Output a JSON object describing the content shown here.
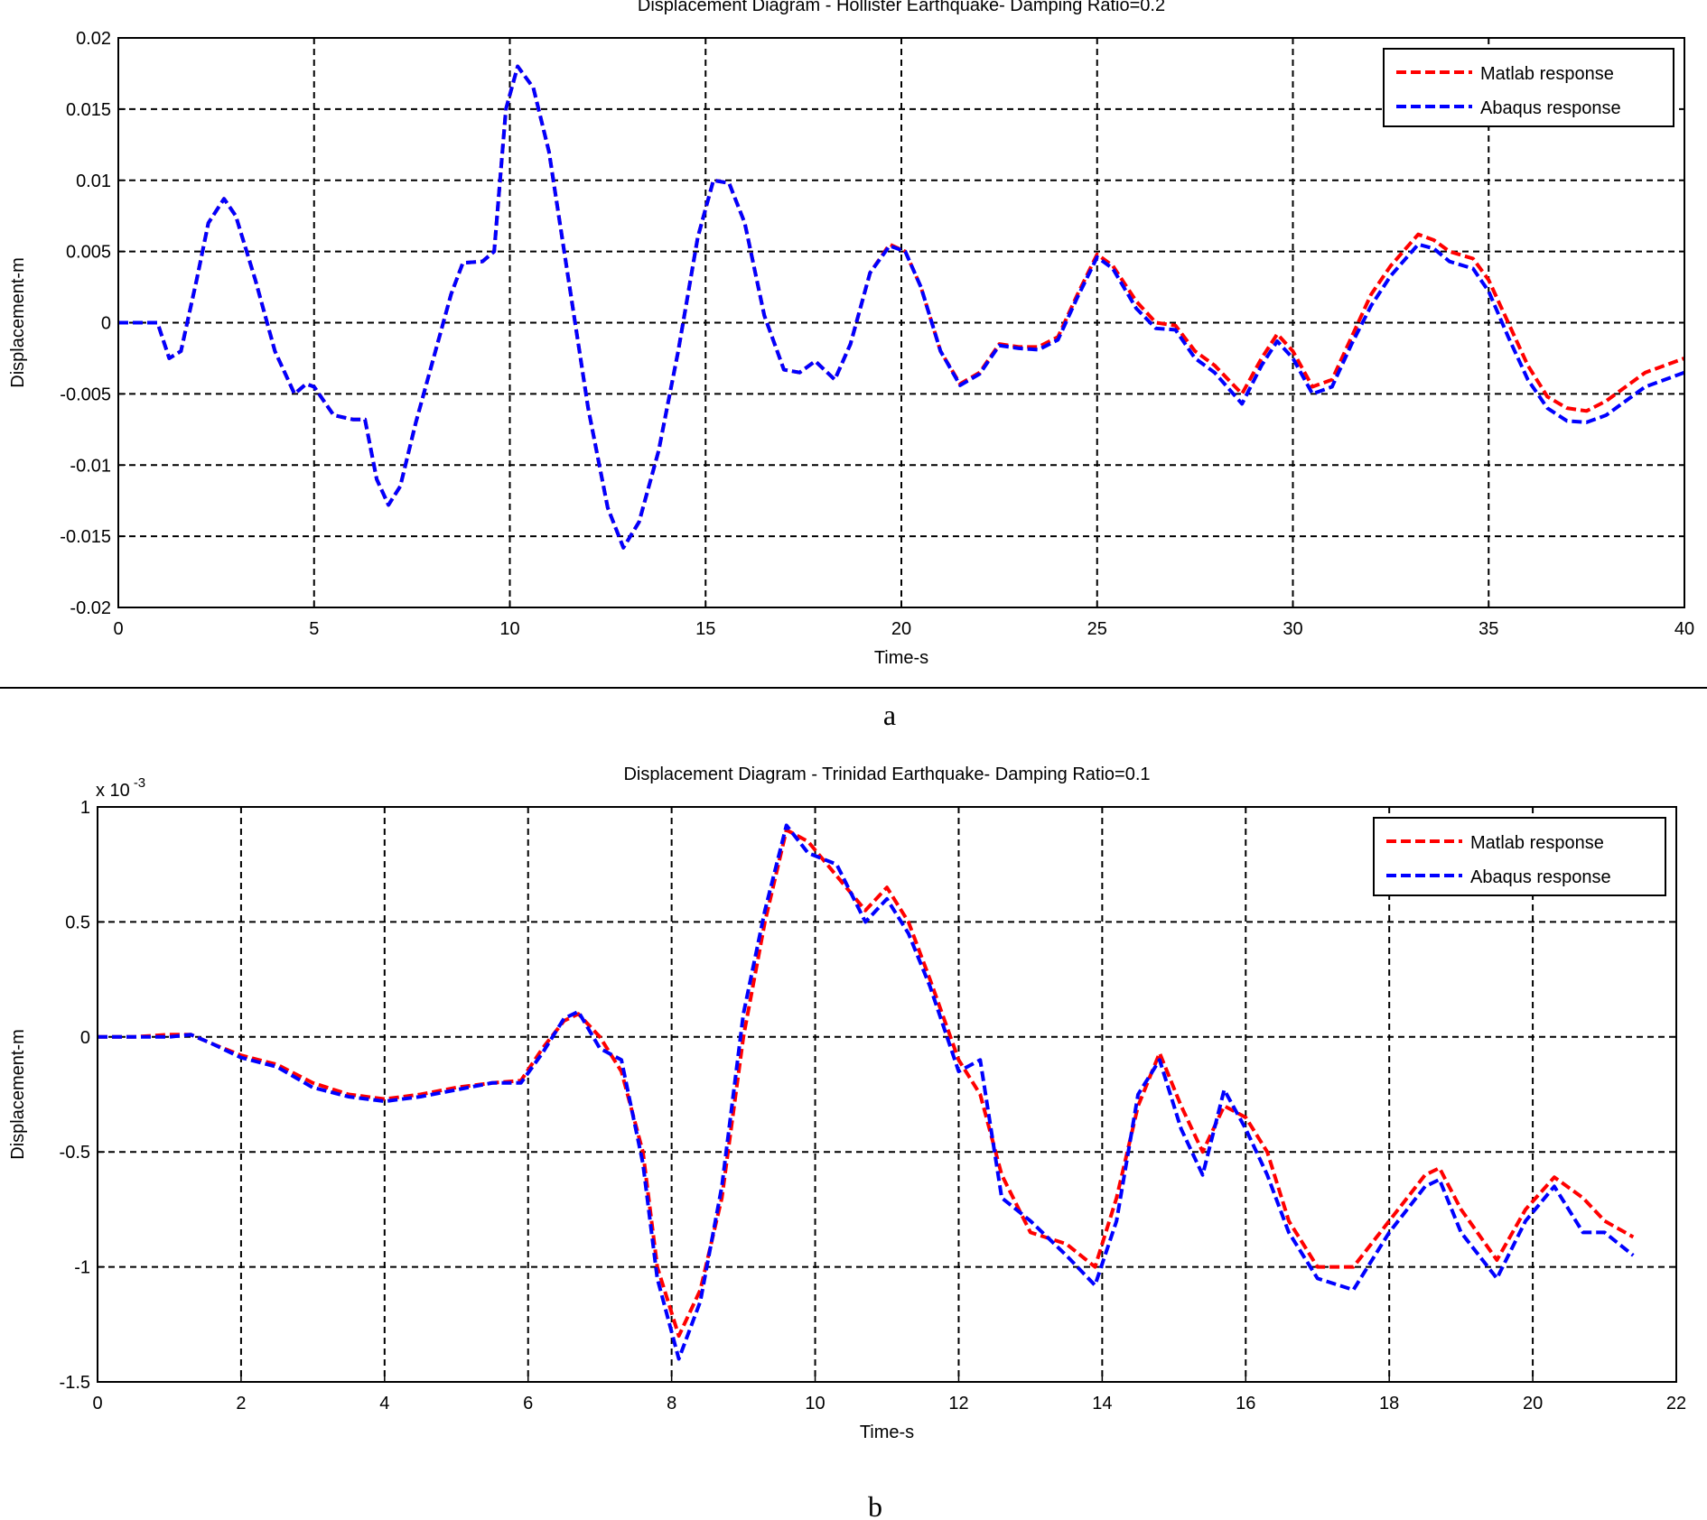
{
  "chart_data": [
    {
      "type": "line",
      "title": "Displacement Diagram - Hollister Earthquake- Damping Ratio=0.2",
      "xlabel": "Time-s",
      "ylabel": "Displacement-m",
      "caption": "a",
      "x": [
        0,
        0.5,
        1,
        1.3,
        1.6,
        2,
        2.3,
        2.7,
        3,
        3.5,
        4,
        4.5,
        4.8,
        5,
        5.5,
        6,
        6.3,
        6.6,
        6.9,
        7.2,
        7.6,
        8,
        8.5,
        8.8,
        9.3,
        9.6,
        9.9,
        10.2,
        10.6,
        11,
        11.5,
        12,
        12.5,
        12.9,
        13.3,
        13.8,
        14.3,
        14.8,
        15.2,
        15.6,
        16,
        16.5,
        17,
        17.4,
        17.8,
        18.3,
        18.7,
        19.2,
        19.7,
        20.1,
        20.5,
        21,
        21.5,
        22,
        22.5,
        23,
        23.5,
        24,
        24.5,
        25,
        25.4,
        26,
        26.5,
        27,
        27.5,
        28,
        28.7,
        29.2,
        29.6,
        30,
        30.5,
        31,
        31.5,
        32,
        32.5,
        33.2,
        33.6,
        34,
        34.6,
        35,
        35.5,
        36,
        36.5,
        37,
        37.5,
        38,
        38.5,
        39,
        39.5,
        40
      ],
      "series": [
        {
          "name": "Matlab response",
          "color": "#ff0000",
          "values": [
            0,
            0,
            0,
            -0.0025,
            -0.002,
            0.003,
            0.007,
            0.0087,
            0.0075,
            0.003,
            -0.002,
            -0.005,
            -0.0043,
            -0.0045,
            -0.0065,
            -0.0068,
            -0.0068,
            -0.011,
            -0.0128,
            -0.0115,
            -0.007,
            -0.003,
            0.002,
            0.0042,
            0.0043,
            0.005,
            0.015,
            0.018,
            0.0165,
            0.012,
            0.003,
            -0.006,
            -0.013,
            -0.0158,
            -0.014,
            -0.009,
            -0.002,
            0.006,
            0.01,
            0.0098,
            0.007,
            0.0005,
            -0.0033,
            -0.0035,
            -0.0027,
            -0.004,
            -0.0015,
            0.0035,
            0.0055,
            0.005,
            0.0025,
            -0.002,
            -0.0043,
            -0.0035,
            -0.0015,
            -0.0017,
            -0.0017,
            -0.001,
            0.002,
            0.0048,
            0.004,
            0.0015,
            0,
            -0.0002,
            -0.002,
            -0.003,
            -0.005,
            -0.0025,
            -0.0008,
            -0.002,
            -0.0045,
            -0.004,
            -0.001,
            0.002,
            0.004,
            0.0062,
            0.0058,
            0.005,
            0.0045,
            0.003,
            0,
            -0.003,
            -0.0052,
            -0.006,
            -0.0062,
            -0.0055,
            -0.0045,
            -0.0035,
            -0.003,
            -0.0025
          ]
        },
        {
          "name": "Abaqus response",
          "color": "#0000ff",
          "values": [
            0,
            0,
            0,
            -0.0025,
            -0.002,
            0.003,
            0.007,
            0.0087,
            0.0075,
            0.003,
            -0.002,
            -0.005,
            -0.0043,
            -0.0045,
            -0.0065,
            -0.0068,
            -0.0068,
            -0.011,
            -0.0128,
            -0.0115,
            -0.007,
            -0.003,
            0.002,
            0.0042,
            0.0043,
            0.005,
            0.015,
            0.018,
            0.0165,
            0.012,
            0.003,
            -0.006,
            -0.013,
            -0.0158,
            -0.014,
            -0.009,
            -0.002,
            0.006,
            0.01,
            0.0098,
            0.007,
            0.0005,
            -0.0033,
            -0.0035,
            -0.0027,
            -0.004,
            -0.0015,
            0.0035,
            0.0054,
            0.005,
            0.0025,
            -0.002,
            -0.0044,
            -0.0036,
            -0.0016,
            -0.0018,
            -0.0019,
            -0.0012,
            0.0018,
            0.0046,
            0.0038,
            0.001,
            -0.0004,
            -0.0005,
            -0.0025,
            -0.0035,
            -0.0057,
            -0.003,
            -0.0013,
            -0.0025,
            -0.005,
            -0.0045,
            -0.0015,
            0.0012,
            0.0033,
            0.0055,
            0.0052,
            0.0043,
            0.0038,
            0.0022,
            -0.001,
            -0.004,
            -0.006,
            -0.0069,
            -0.007,
            -0.0065,
            -0.0055,
            -0.0045,
            -0.004,
            -0.0035
          ]
        }
      ],
      "xlim": [
        0,
        40
      ],
      "ylim": [
        -0.02,
        0.02
      ],
      "xticks": [
        0,
        5,
        10,
        15,
        20,
        25,
        30,
        35,
        40
      ],
      "yticks": [
        -0.02,
        -0.015,
        -0.01,
        -0.005,
        0,
        0.005,
        0.01,
        0.015,
        0.02
      ],
      "grid": true,
      "legend": "upper right"
    },
    {
      "type": "line",
      "title": "Displacement Diagram - Trinidad Earthquake- Damping Ratio=0.1",
      "xlabel": "Time-s",
      "ylabel": "Displacement-m",
      "caption": "b",
      "y_scale_base": "x 10",
      "y_scale_exponent": "-3",
      "x": [
        0,
        0.5,
        1,
        1.3,
        1.6,
        2,
        2.5,
        3,
        3.5,
        4,
        4.5,
        5,
        5.5,
        5.9,
        6.2,
        6.5,
        6.7,
        7,
        7.3,
        7.6,
        7.8,
        8.1,
        8.4,
        8.7,
        9,
        9.3,
        9.6,
        9.9,
        10.3,
        10.7,
        11,
        11.3,
        11.6,
        12,
        12.3,
        12.6,
        13,
        13.5,
        13.9,
        14.2,
        14.5,
        14.8,
        15.1,
        15.4,
        15.7,
        16,
        16.3,
        16.6,
        17,
        17.5,
        18,
        18.5,
        18.7,
        19,
        19.5,
        19.9,
        20.3,
        20.7,
        21,
        21.4
      ],
      "series": [
        {
          "name": "Matlab response",
          "color": "#ff0000",
          "values": [
            0,
            0,
            0.01,
            0.01,
            -0.03,
            -0.08,
            -0.12,
            -0.2,
            -0.25,
            -0.27,
            -0.25,
            -0.22,
            -0.2,
            -0.19,
            -0.05,
            0.07,
            0.1,
            0,
            -0.15,
            -0.5,
            -1.0,
            -1.3,
            -1.1,
            -0.7,
            0,
            0.5,
            0.9,
            0.85,
            0.7,
            0.55,
            0.65,
            0.5,
            0.25,
            -0.1,
            -0.25,
            -0.6,
            -0.85,
            -0.9,
            -1.0,
            -0.7,
            -0.3,
            -0.07,
            -0.3,
            -0.5,
            -0.3,
            -0.35,
            -0.5,
            -0.8,
            -1.0,
            -1.0,
            -0.8,
            -0.6,
            -0.57,
            -0.75,
            -0.97,
            -0.75,
            -0.61,
            -0.7,
            -0.8,
            -0.87
          ]
        },
        {
          "name": "Abaqus response",
          "color": "#0000ff",
          "values": [
            0,
            0,
            0,
            0.01,
            -0.03,
            -0.09,
            -0.13,
            -0.22,
            -0.26,
            -0.28,
            -0.26,
            -0.23,
            -0.2,
            -0.2,
            -0.07,
            0.08,
            0.11,
            -0.05,
            -0.1,
            -0.55,
            -1.05,
            -1.4,
            -1.15,
            -0.65,
            0.1,
            0.55,
            0.92,
            0.8,
            0.75,
            0.5,
            0.6,
            0.45,
            0.22,
            -0.15,
            -0.1,
            -0.7,
            -0.8,
            -0.95,
            -1.08,
            -0.8,
            -0.25,
            -0.1,
            -0.4,
            -0.6,
            -0.23,
            -0.4,
            -0.6,
            -0.85,
            -1.05,
            -1.1,
            -0.85,
            -0.65,
            -0.62,
            -0.85,
            -1.05,
            -0.8,
            -0.65,
            -0.85,
            -0.85,
            -0.95
          ]
        }
      ],
      "xlim": [
        0,
        22
      ],
      "ylim": [
        -1.5,
        1
      ],
      "xticks": [
        0,
        2,
        4,
        6,
        8,
        10,
        12,
        14,
        16,
        18,
        20,
        22
      ],
      "yticks": [
        -1.5,
        -1,
        -0.5,
        0,
        0.5,
        1
      ],
      "grid": true,
      "legend": "upper right"
    }
  ]
}
